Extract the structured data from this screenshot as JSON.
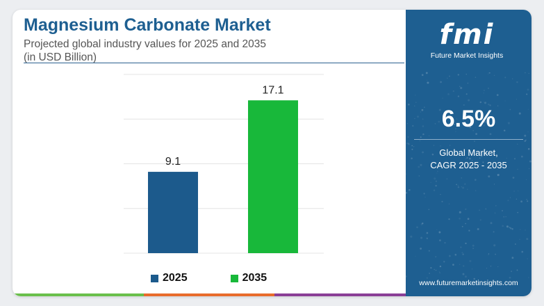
{
  "header": {
    "title": "Magnesium Carbonate Market",
    "subtitle": "Projected global industry values for 2025 and 2035",
    "unit": "(in USD Billion)"
  },
  "chart_data": {
    "type": "bar",
    "categories": [
      "2025",
      "2035"
    ],
    "values": [
      9.1,
      17.1
    ],
    "colors": [
      "#1c5a8c",
      "#18b83a"
    ],
    "value_labels": [
      "9.1",
      "17.1"
    ],
    "ylim": [
      0,
      20
    ],
    "grid": true,
    "legend_position": "bottom"
  },
  "legend": {
    "items": [
      {
        "label": "2025",
        "color": "#1c5a8c"
      },
      {
        "label": "2035",
        "color": "#18b83a"
      }
    ]
  },
  "sidebar": {
    "logo_mark": "fmi",
    "logo_text": "Future Market Insights",
    "cagr_value": "6.5%",
    "cagr_label_line1": "Global Market,",
    "cagr_label_line2": "CAGR 2025 - 2035",
    "website": "www.futuremarketinsights.com"
  },
  "theme": {
    "brand_blue": "#1e5f91",
    "bottom_bar_colors": [
      "#6abf4b",
      "#e86c2c",
      "#8a3f96"
    ]
  }
}
